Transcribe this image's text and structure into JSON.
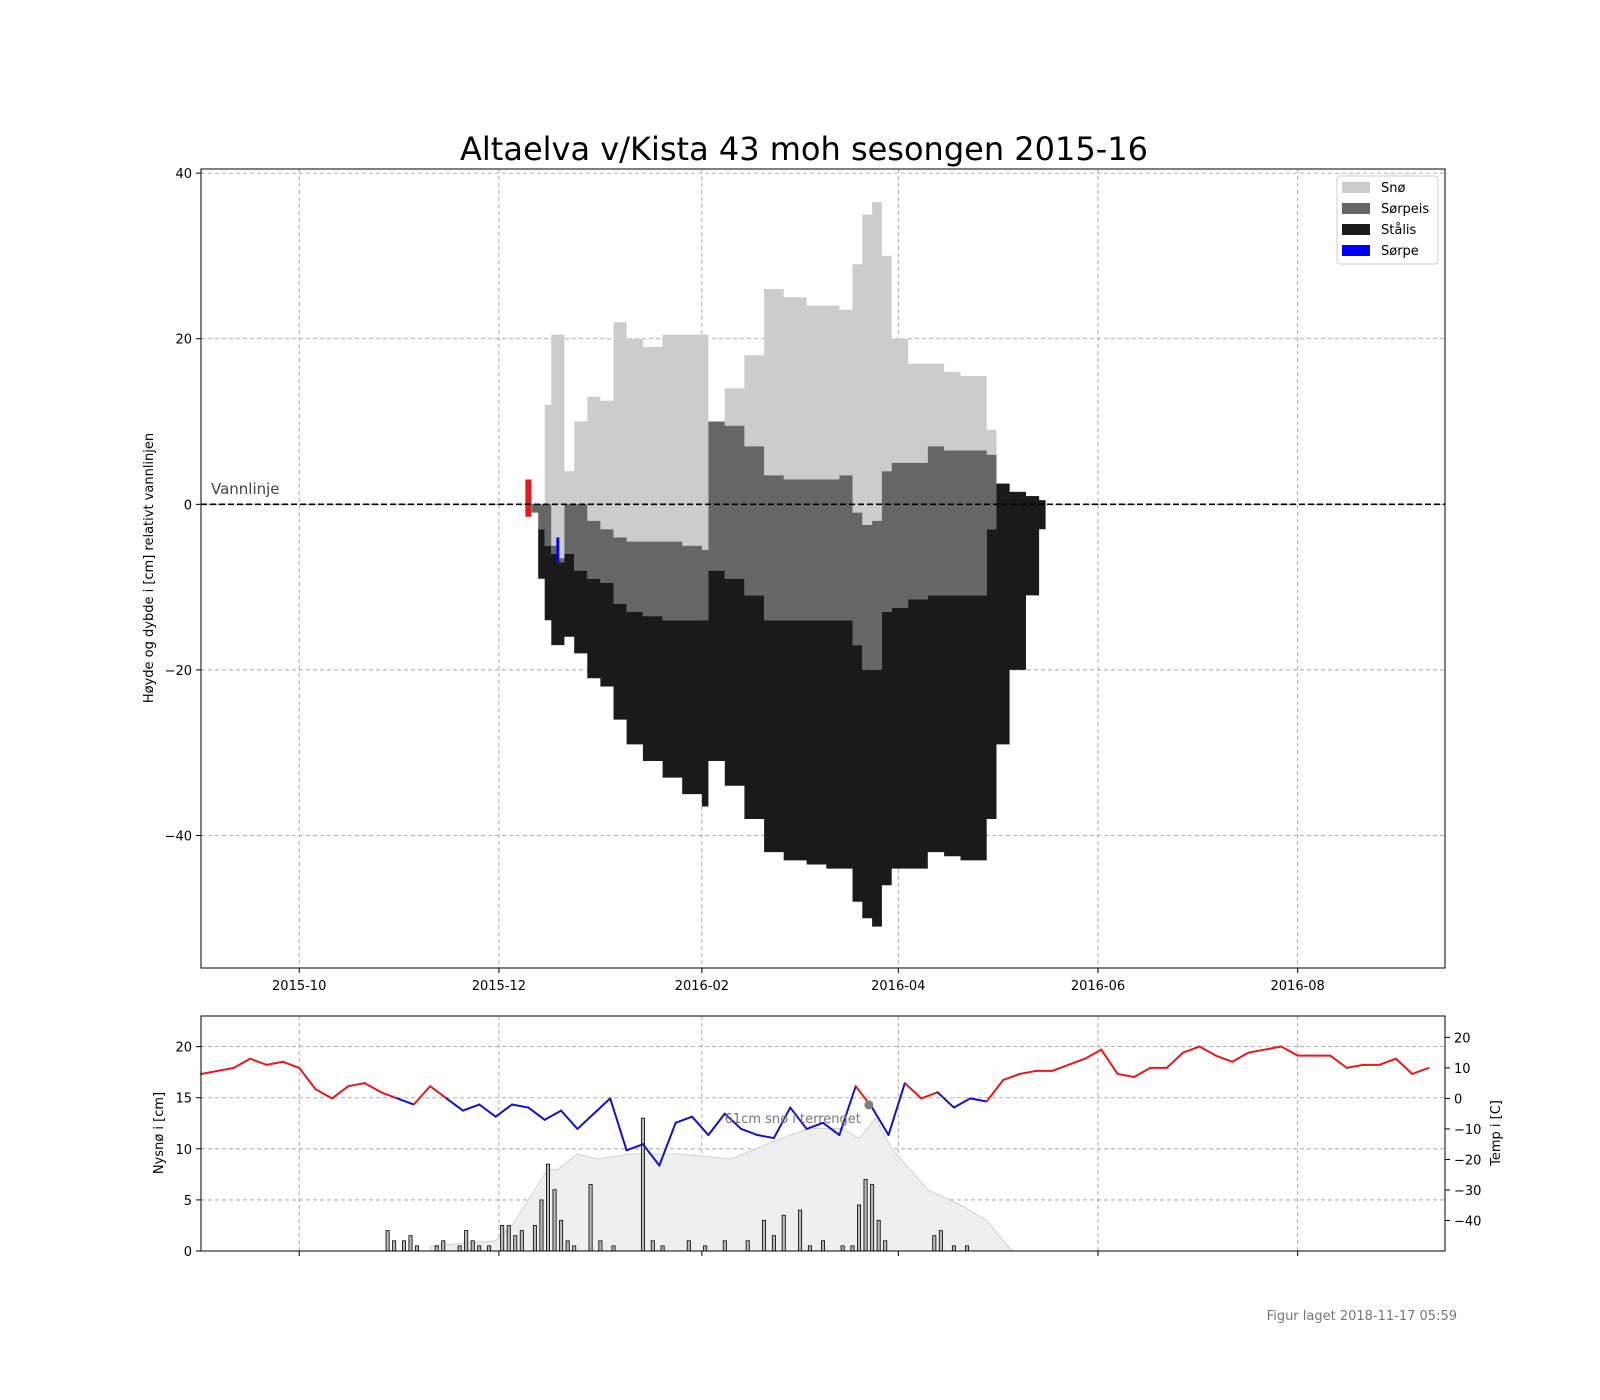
{
  "colors": {
    "snow": "#cccccc",
    "slush_ice": "#666666",
    "black_ice": "#1a1a1a",
    "slush": "#0000ff",
    "warm": "#e41a1c",
    "cold": "#1111cc",
    "snow_bars": "#b9b9b9",
    "snow_cover": "#efefef"
  },
  "chart_data": [
    {
      "type": "area",
      "title": "Altaelva v/Kista 43 moh sesongen 2015-16",
      "ylabel": "Høyde og dybde i [cm] relativt vannlinjen",
      "xlabel": "",
      "xlim": [
        "2015-09-01",
        "2016-09-15"
      ],
      "ylim": [
        -56,
        40.5
      ],
      "x_tick_labels": [
        "2015-10",
        "2015-12",
        "2016-02",
        "2016-04",
        "2016-06",
        "2016-08"
      ],
      "x_tick_dates": [
        "2015-10-01",
        "2015-12-01",
        "2016-02-01",
        "2016-04-01",
        "2016-06-01",
        "2016-08-01"
      ],
      "y_tick_labels": [
        "40",
        "20",
        "0",
        "−20",
        "−40"
      ],
      "y_ticks": [
        40,
        20,
        0,
        -20,
        -40
      ],
      "grid": true,
      "legend": {
        "position": "top-right",
        "entries": [
          {
            "label": "Snø",
            "color_key": "snow"
          },
          {
            "label": "Sørpeis",
            "color_key": "slush_ice"
          },
          {
            "label": "Stålis",
            "color_key": "black_ice"
          },
          {
            "label": "Sørpe",
            "color_key": "slush"
          }
        ]
      },
      "annotation": {
        "text": "Vannlinje",
        "y": 0
      },
      "ice_start_marker": {
        "date": "2015-12-10",
        "top": 3,
        "bottom": -1.5,
        "color_key": "warm"
      },
      "slush_marker": {
        "date": "2015-12-19",
        "top": -4,
        "bottom": -7,
        "color_key": "slush"
      },
      "series": {
        "dates": [
          "2015-12-11",
          "2015-12-13",
          "2015-12-15",
          "2015-12-17",
          "2015-12-19",
          "2015-12-21",
          "2015-12-24",
          "2015-12-28",
          "2016-01-01",
          "2016-01-05",
          "2016-01-09",
          "2016-01-14",
          "2016-01-20",
          "2016-01-26",
          "2016-02-01",
          "2016-02-03",
          "2016-02-08",
          "2016-02-14",
          "2016-02-20",
          "2016-02-26",
          "2016-03-04",
          "2016-03-10",
          "2016-03-14",
          "2016-03-18",
          "2016-03-21",
          "2016-03-24",
          "2016-03-27",
          "2016-03-30",
          "2016-04-04",
          "2016-04-10",
          "2016-04-15",
          "2016-04-20",
          "2016-04-25",
          "2016-04-28",
          "2016-05-01",
          "2016-05-05",
          "2016-05-10",
          "2016-05-14",
          "2016-05-16"
        ],
        "snow_top": [
          0,
          0,
          12,
          20.5,
          20.5,
          4,
          10,
          13,
          12.5,
          22,
          20,
          19,
          20.5,
          20.5,
          20.5,
          10,
          14,
          18,
          26,
          25,
          24,
          24,
          23.5,
          29,
          35,
          36.5,
          30,
          20,
          17,
          17,
          16,
          15.5,
          15.5,
          9,
          0,
          0,
          0,
          0,
          0
        ],
        "snow_bottom": [
          0,
          0,
          0,
          -5,
          -6.5,
          0,
          0,
          -2,
          -3,
          -4,
          -4.5,
          -4.5,
          -4.5,
          -5,
          -5.5,
          10,
          9.5,
          7,
          3.5,
          3,
          3,
          3,
          3.5,
          -1,
          -2.5,
          -2,
          4,
          5,
          5,
          7,
          6.5,
          6.5,
          6.5,
          6,
          0,
          0,
          0,
          0,
          0
        ],
        "slush_ice_top": [
          0,
          0,
          0,
          -5,
          -6.5,
          0,
          0,
          -2,
          -3,
          -4,
          -4.5,
          -4.5,
          -4.5,
          -5,
          -5.5,
          10,
          9.5,
          7,
          3.5,
          3,
          3,
          3,
          3.5,
          -1,
          -2.5,
          -2,
          4,
          5,
          5,
          7,
          6.5,
          6.5,
          6.5,
          6,
          0,
          0,
          0,
          0,
          0
        ],
        "slush_ice_bottom": [
          -1,
          -3,
          -5,
          -6,
          -7,
          -6,
          -8,
          -9,
          -9.5,
          -12,
          -13,
          -13.5,
          -14,
          -14,
          -14,
          -8,
          -9,
          -11,
          -14,
          -14,
          -14,
          -14,
          -14,
          -17,
          -20,
          -20,
          -13,
          -12.5,
          -11.5,
          -11,
          -11,
          -11,
          -11,
          -3,
          2.5,
          1.5,
          1,
          0.5,
          0
        ],
        "black_ice_bottom": [
          -1,
          -9,
          -14,
          -17,
          -17,
          -16,
          -18,
          -21,
          -22,
          -26,
          -29,
          -31,
          -33,
          -35,
          -36.5,
          -31,
          -34,
          -38,
          -42,
          -43,
          -43.5,
          -44,
          -44,
          -48,
          -50,
          -51,
          -46,
          -44,
          -44,
          -42,
          -42.5,
          -43,
          -43,
          -38,
          -29,
          -20,
          -11,
          -3,
          0
        ]
      }
    },
    {
      "type": "bar",
      "ylabel": "Nysnø i [cm]",
      "y2label": "Temp i [C]",
      "xlim": [
        "2015-09-01",
        "2016-09-15"
      ],
      "ylim": [
        0,
        23
      ],
      "y2lim": [
        -50,
        27
      ],
      "y_tick_labels": [
        "0",
        "5",
        "10",
        "15",
        "20"
      ],
      "y_ticks": [
        0,
        5,
        10,
        15,
        20
      ],
      "y2_tick_labels": [
        "−40",
        "−30",
        "−20",
        "−10",
        "0",
        "10",
        "20"
      ],
      "y2_ticks": [
        -40,
        -30,
        -20,
        -10,
        0,
        10,
        20
      ],
      "grid": true,
      "note": {
        "text": "61cm snø i terrenget",
        "date": "2016-03-23",
        "value": 14.3
      },
      "temperature": {
        "dates": [
          "2015-09-01",
          "2015-09-06",
          "2015-09-11",
          "2015-09-16",
          "2015-09-21",
          "2015-09-26",
          "2015-10-01",
          "2015-10-06",
          "2015-10-11",
          "2015-10-16",
          "2015-10-21",
          "2015-10-26",
          "2015-10-31",
          "2015-11-05",
          "2015-11-10",
          "2015-11-15",
          "2015-11-20",
          "2015-11-25",
          "2015-11-30",
          "2015-12-05",
          "2015-12-10",
          "2015-12-15",
          "2015-12-20",
          "2015-12-25",
          "2015-12-30",
          "2016-01-04",
          "2016-01-09",
          "2016-01-14",
          "2016-01-19",
          "2016-01-24",
          "2016-01-29",
          "2016-02-03",
          "2016-02-08",
          "2016-02-13",
          "2016-02-18",
          "2016-02-23",
          "2016-02-28",
          "2016-03-04",
          "2016-03-09",
          "2016-03-14",
          "2016-03-19",
          "2016-03-24",
          "2016-03-29",
          "2016-04-03",
          "2016-04-08",
          "2016-04-13",
          "2016-04-18",
          "2016-04-23",
          "2016-04-28",
          "2016-05-03",
          "2016-05-08",
          "2016-05-13",
          "2016-05-18",
          "2016-05-23",
          "2016-05-28",
          "2016-06-02",
          "2016-06-07",
          "2016-06-12",
          "2016-06-17",
          "2016-06-22",
          "2016-06-27",
          "2016-07-02",
          "2016-07-07",
          "2016-07-12",
          "2016-07-17",
          "2016-07-22",
          "2016-07-27",
          "2016-08-01",
          "2016-08-06",
          "2016-08-11",
          "2016-08-16",
          "2016-08-21",
          "2016-08-26",
          "2016-08-31",
          "2016-09-05",
          "2016-09-10"
        ],
        "values": [
          8,
          9,
          10,
          13,
          11,
          12,
          10,
          3,
          0,
          4,
          5,
          2,
          0,
          -2,
          4,
          0,
          -4,
          -2,
          -6,
          -2,
          -3,
          -7,
          -4,
          -10,
          -5,
          0,
          -17,
          -15,
          -22,
          -8,
          -6,
          -12,
          -5,
          -10,
          -12,
          -13,
          -3,
          -10,
          -8,
          -12,
          4,
          -3,
          -12,
          5,
          0,
          2,
          -3,
          0,
          -1,
          6,
          8,
          9,
          9,
          11,
          13,
          16,
          8,
          7,
          10,
          10,
          15,
          17,
          14,
          12,
          15,
          16,
          17,
          14,
          14,
          14,
          10,
          11,
          11,
          13,
          8,
          10
        ]
      },
      "snow_cover": {
        "dates": [
          "2015-11-10",
          "2015-11-30",
          "2015-12-05",
          "2015-12-12",
          "2015-12-16",
          "2015-12-19",
          "2015-12-25",
          "2015-12-31",
          "2016-01-10",
          "2016-01-25",
          "2016-02-10",
          "2016-02-25",
          "2016-03-05",
          "2016-03-15",
          "2016-03-20",
          "2016-03-25",
          "2016-03-30",
          "2016-04-10",
          "2016-04-20",
          "2016-04-28",
          "2016-05-03",
          "2016-05-06"
        ],
        "values": [
          0.5,
          1,
          2.5,
          6,
          8,
          8,
          9.5,
          9,
          9.5,
          9.5,
          9,
          11,
          12,
          12,
          11,
          13,
          10,
          6,
          4.5,
          3,
          1,
          0
        ]
      },
      "new_snow": {
        "dates": [
          "2015-10-28",
          "2015-10-30",
          "2015-11-02",
          "2015-11-04",
          "2015-11-06",
          "2015-11-12",
          "2015-11-14",
          "2015-11-19",
          "2015-11-21",
          "2015-11-23",
          "2015-11-25",
          "2015-11-28",
          "2015-12-02",
          "2015-12-04",
          "2015-12-06",
          "2015-12-08",
          "2015-12-12",
          "2015-12-14",
          "2015-12-16",
          "2015-12-18",
          "2015-12-20",
          "2015-12-22",
          "2015-12-24",
          "2015-12-29",
          "2016-01-01",
          "2016-01-05",
          "2016-01-14",
          "2016-01-17",
          "2016-01-20",
          "2016-01-28",
          "2016-02-02",
          "2016-02-08",
          "2016-02-15",
          "2016-02-20",
          "2016-02-23",
          "2016-02-26",
          "2016-03-02",
          "2016-03-05",
          "2016-03-09",
          "2016-03-15",
          "2016-03-18",
          "2016-03-20",
          "2016-03-22",
          "2016-03-24",
          "2016-03-26",
          "2016-03-28",
          "2016-04-12",
          "2016-04-14",
          "2016-04-18",
          "2016-04-22"
        ],
        "values": [
          2,
          1,
          1,
          1.5,
          0.5,
          0.5,
          1,
          0.5,
          2,
          1,
          0.5,
          0.5,
          2.5,
          2.5,
          1.5,
          2,
          2.5,
          5,
          8.5,
          6,
          3,
          1,
          0.5,
          6.5,
          1,
          0.5,
          13,
          1,
          0.5,
          1,
          0.5,
          1,
          1,
          3,
          1.5,
          3.5,
          4,
          0.5,
          1,
          0.5,
          0.5,
          4.5,
          7,
          6.5,
          3,
          1,
          1.5,
          2,
          0.5,
          0.5
        ]
      }
    }
  ],
  "footer": {
    "text": "Figur laget 2018-11-17 05:59"
  }
}
